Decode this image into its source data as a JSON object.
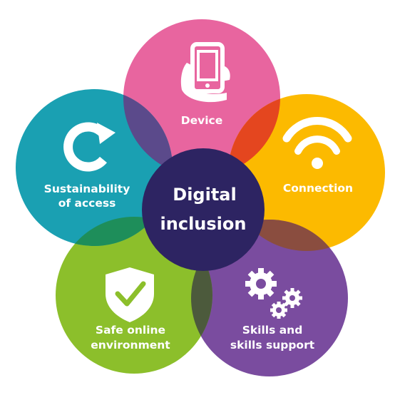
{
  "center": {
    "line1": "Digital",
    "line2": "inclusion",
    "color": "#2d2462"
  },
  "petals": [
    {
      "id": "device",
      "lines": [
        "Device"
      ],
      "color": "#e8659f",
      "icon": "tablet-hand-icon"
    },
    {
      "id": "connection",
      "lines": [
        "Connection"
      ],
      "color": "#fcba00",
      "icon": "wifi-icon"
    },
    {
      "id": "skills",
      "lines": [
        "Skills and",
        "skills support"
      ],
      "color": "#7a4c9f",
      "icon": "gears-icon"
    },
    {
      "id": "safe",
      "lines": [
        "Safe online",
        "environment"
      ],
      "color": "#8cbf2b",
      "icon": "shield-check-icon"
    },
    {
      "id": "sustainability",
      "lines": [
        "Sustainability",
        "of access"
      ],
      "color": "#1aa0b2",
      "icon": "refresh-icon"
    }
  ],
  "overlaps": {
    "device_connection": "#e4461f",
    "sustainability_device": "#5b4a8b",
    "sustainability_safe": "#1e8e5a",
    "safe_skills": "#4c5a3c",
    "connection_skills": "#8a4d3f"
  }
}
